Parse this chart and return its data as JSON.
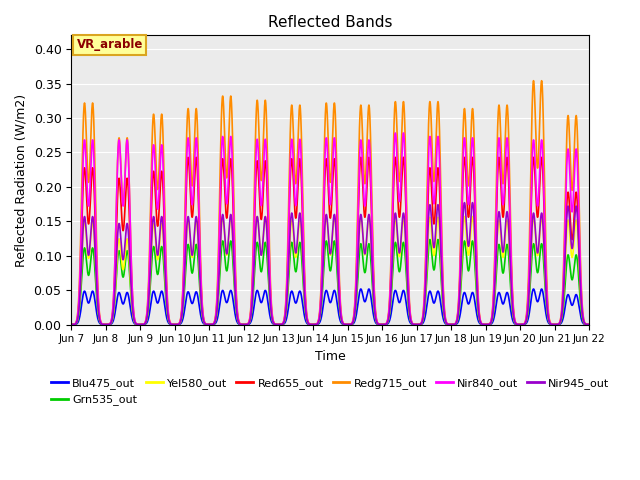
{
  "title": "Reflected Bands",
  "xlabel": "Time",
  "ylabel": "Reflected Radiation (W/m2)",
  "annotation": "VR_arable",
  "annotation_color": "#8B0000",
  "annotation_bg": "#FFFF99",
  "annotation_border": "#DAA520",
  "ylim": [
    0.0,
    0.42
  ],
  "yticks": [
    0.0,
    0.05,
    0.1,
    0.15,
    0.2,
    0.25,
    0.3,
    0.35,
    0.4
  ],
  "n_days": 15,
  "series": [
    {
      "name": "Blu475_out",
      "color": "#0000FF",
      "lw": 1.2
    },
    {
      "name": "Grn535_out",
      "color": "#00CC00",
      "lw": 1.2
    },
    {
      "name": "Yel580_out",
      "color": "#FFFF00",
      "lw": 1.2
    },
    {
      "name": "Red655_out",
      "color": "#FF0000",
      "lw": 1.2
    },
    {
      "name": "Redg715_out",
      "color": "#FF8C00",
      "lw": 1.2
    },
    {
      "name": "Nir840_out",
      "color": "#FF00FF",
      "lw": 1.2
    },
    {
      "name": "Nir945_out",
      "color": "#9900CC",
      "lw": 1.2
    }
  ],
  "xtick_labels": [
    "Jun 7",
    "Jun 8",
    "Jun 9",
    "Jun 10",
    "Jun 11",
    "Jun 12",
    "Jun 13",
    "Jun 14",
    "Jun 15",
    "Jun 16",
    "Jun 17",
    "Jun 18",
    "Jun 19",
    "Jun 20",
    "Jun 21",
    "Jun 22"
  ],
  "bg_color": "#EBEBEB",
  "grid_color": "white",
  "peak_scale": [
    [
      0.048,
      0.046,
      0.048,
      0.047,
      0.049,
      0.049,
      0.048,
      0.049,
      0.051,
      0.049,
      0.048,
      0.046,
      0.046,
      0.051,
      0.043
    ],
    [
      0.11,
      0.106,
      0.112,
      0.115,
      0.12,
      0.118,
      0.118,
      0.12,
      0.116,
      0.118,
      0.122,
      0.12,
      0.115,
      0.116,
      0.1
    ],
    [
      0.148,
      0.123,
      0.145,
      0.15,
      0.155,
      0.155,
      0.15,
      0.155,
      0.156,
      0.152,
      0.154,
      0.155,
      0.15,
      0.154,
      0.15
    ],
    [
      0.225,
      0.21,
      0.22,
      0.24,
      0.238,
      0.235,
      0.238,
      0.238,
      0.24,
      0.24,
      0.225,
      0.24,
      0.24,
      0.24,
      0.19
    ],
    [
      0.318,
      0.268,
      0.302,
      0.31,
      0.328,
      0.322,
      0.315,
      0.318,
      0.315,
      0.32,
      0.32,
      0.31,
      0.315,
      0.35,
      0.3
    ],
    [
      0.265,
      0.265,
      0.258,
      0.268,
      0.27,
      0.266,
      0.266,
      0.268,
      0.265,
      0.275,
      0.27,
      0.268,
      0.268,
      0.265,
      0.252
    ],
    [
      0.155,
      0.145,
      0.155,
      0.155,
      0.158,
      0.155,
      0.16,
      0.158,
      0.158,
      0.16,
      0.172,
      0.175,
      0.162,
      0.16,
      0.17
    ]
  ]
}
